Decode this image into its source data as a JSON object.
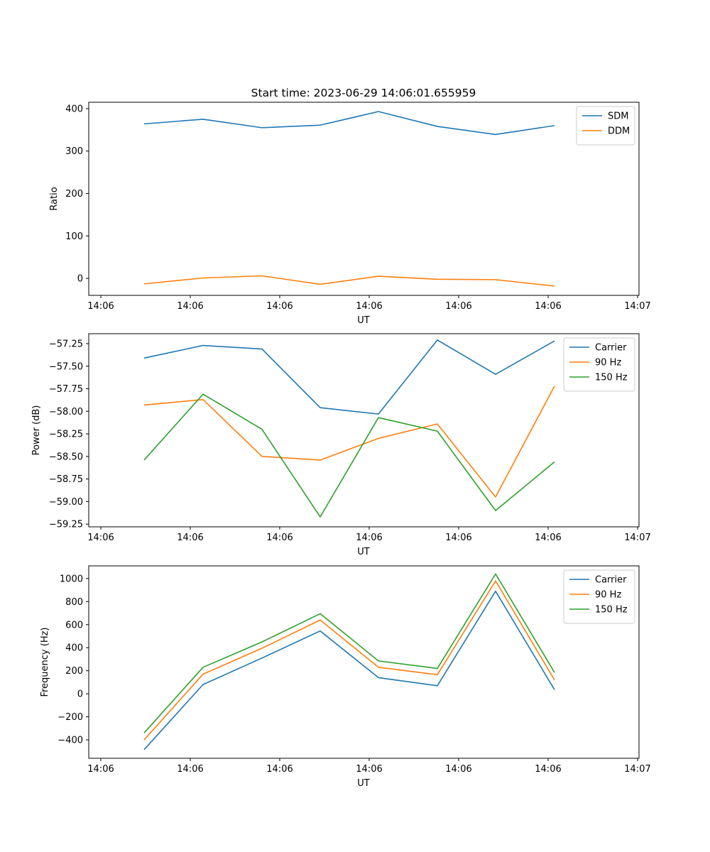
{
  "figure": {
    "title": "Start time: 2023-06-29 14:06:01.655959"
  },
  "chart_data": [
    {
      "type": "line",
      "xlabel": "UT",
      "ylabel": "Ratio",
      "x_ticks": [
        "14:06",
        "14:06",
        "14:06",
        "14:06",
        "14:06",
        "14:06",
        "14:07"
      ],
      "ylim": [
        -40,
        415
      ],
      "y_ticks": [
        0,
        100,
        200,
        300,
        400
      ],
      "legend": "top-right",
      "series": [
        {
          "name": "SDM",
          "color": "#1f77b4",
          "values": [
            364,
            375,
            355,
            361,
            393,
            358,
            339,
            360
          ]
        },
        {
          "name": "DDM",
          "color": "#ff7f0e",
          "values": [
            -13,
            1,
            6,
            -14,
            5,
            -2,
            -3,
            -18
          ]
        }
      ]
    },
    {
      "type": "line",
      "xlabel": "UT",
      "ylabel": "Power (dB)",
      "x_ticks": [
        "14:06",
        "14:06",
        "14:06",
        "14:06",
        "14:06",
        "14:06",
        "14:07"
      ],
      "ylim": [
        -59.28,
        -57.14
      ],
      "y_ticks": [
        -57.25,
        -57.5,
        -57.75,
        -58.0,
        -58.25,
        -58.5,
        -58.75,
        -59.0,
        -59.25
      ],
      "y_tick_labels": [
        "−57.25",
        "−57.50",
        "−57.75",
        "−58.00",
        "−58.25",
        "−58.50",
        "−58.75",
        "−59.00",
        "−59.25"
      ],
      "legend": "top-right",
      "series": [
        {
          "name": "Carrier",
          "color": "#1f77b4",
          "values": [
            -57.41,
            -57.27,
            -57.31,
            -57.96,
            -58.03,
            -57.21,
            -57.59,
            -57.22
          ]
        },
        {
          "name": "90 Hz",
          "color": "#ff7f0e",
          "values": [
            -57.93,
            -57.87,
            -58.5,
            -58.54,
            -58.3,
            -58.14,
            -58.95,
            -57.72
          ]
        },
        {
          "name": "150 Hz",
          "color": "#2ca02c",
          "values": [
            -58.54,
            -57.81,
            -58.2,
            -59.17,
            -58.07,
            -58.22,
            -59.1,
            -58.56
          ]
        }
      ]
    },
    {
      "type": "line",
      "xlabel": "UT",
      "ylabel": "Frequency (Hz)",
      "x_ticks": [
        "14:06",
        "14:06",
        "14:06",
        "14:06",
        "14:06",
        "14:06",
        "14:07"
      ],
      "ylim": [
        -560,
        1110
      ],
      "y_ticks": [
        -400,
        -200,
        0,
        200,
        400,
        600,
        800,
        1000
      ],
      "y_tick_labels": [
        "−400",
        "−200",
        "0",
        "200",
        "400",
        "600",
        "800",
        "1000"
      ],
      "legend": "top-right",
      "series": [
        {
          "name": "Carrier",
          "color": "#1f77b4",
          "values": [
            -485,
            80,
            310,
            545,
            140,
            70,
            890,
            35
          ]
        },
        {
          "name": "90 Hz",
          "color": "#ff7f0e",
          "values": [
            -400,
            170,
            395,
            640,
            230,
            165,
            980,
            120
          ]
        },
        {
          "name": "150 Hz",
          "color": "#2ca02c",
          "values": [
            -340,
            230,
            450,
            695,
            285,
            220,
            1040,
            185
          ]
        }
      ]
    }
  ]
}
